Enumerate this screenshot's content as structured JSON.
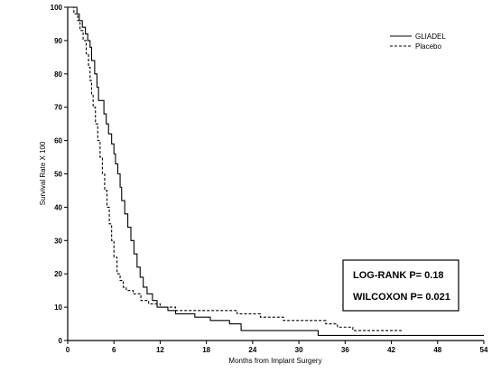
{
  "chart_data": {
    "type": "line",
    "title": "",
    "xlabel": "Months from Implant Surgery",
    "ylabel": "Survival Rate X 100",
    "xlim": [
      0,
      54
    ],
    "ylim": [
      0,
      100
    ],
    "xticks": [
      0,
      6,
      12,
      18,
      24,
      30,
      36,
      42,
      48,
      54
    ],
    "yticks": [
      0,
      10,
      20,
      30,
      40,
      50,
      60,
      70,
      80,
      90,
      100
    ],
    "grid": false,
    "legend_position": "top-right",
    "series": [
      {
        "name": "GLIADEL",
        "style": "solid",
        "points": [
          [
            0,
            100
          ],
          [
            1.2,
            100
          ],
          [
            1.2,
            98
          ],
          [
            1.5,
            98
          ],
          [
            1.5,
            96
          ],
          [
            1.9,
            96
          ],
          [
            1.9,
            94
          ],
          [
            2.3,
            94
          ],
          [
            2.3,
            92
          ],
          [
            2.6,
            92
          ],
          [
            2.6,
            90
          ],
          [
            2.9,
            90
          ],
          [
            2.9,
            88
          ],
          [
            3.1,
            88
          ],
          [
            3.1,
            84
          ],
          [
            3.5,
            84
          ],
          [
            3.5,
            80
          ],
          [
            3.8,
            80
          ],
          [
            3.8,
            76
          ],
          [
            4.0,
            76
          ],
          [
            4.0,
            72
          ],
          [
            4.7,
            72
          ],
          [
            4.7,
            68
          ],
          [
            5.0,
            68
          ],
          [
            5.0,
            65
          ],
          [
            5.3,
            65
          ],
          [
            5.3,
            62
          ],
          [
            5.7,
            62
          ],
          [
            5.7,
            59
          ],
          [
            6.0,
            59
          ],
          [
            6.0,
            56
          ],
          [
            6.2,
            56
          ],
          [
            6.2,
            53
          ],
          [
            6.5,
            53
          ],
          [
            6.5,
            50
          ],
          [
            6.8,
            50
          ],
          [
            6.8,
            46
          ],
          [
            7.0,
            46
          ],
          [
            7.0,
            42
          ],
          [
            7.4,
            42
          ],
          [
            7.4,
            38
          ],
          [
            7.8,
            38
          ],
          [
            7.8,
            34
          ],
          [
            8.2,
            34
          ],
          [
            8.2,
            30
          ],
          [
            8.6,
            30
          ],
          [
            8.6,
            26
          ],
          [
            9.0,
            26
          ],
          [
            9.0,
            22
          ],
          [
            9.4,
            22
          ],
          [
            9.4,
            19
          ],
          [
            9.8,
            19
          ],
          [
            9.8,
            16
          ],
          [
            10.3,
            16
          ],
          [
            10.3,
            14
          ],
          [
            11.0,
            14
          ],
          [
            11.0,
            12
          ],
          [
            11.6,
            12
          ],
          [
            11.6,
            10
          ],
          [
            13.0,
            10
          ],
          [
            13.0,
            9
          ],
          [
            14.0,
            9
          ],
          [
            14.0,
            8
          ],
          [
            16.5,
            8
          ],
          [
            16.5,
            7
          ],
          [
            18.5,
            7
          ],
          [
            18.5,
            6
          ],
          [
            21.0,
            6
          ],
          [
            21.0,
            5
          ],
          [
            22.5,
            5
          ],
          [
            22.5,
            3
          ],
          [
            32.5,
            3
          ],
          [
            32.5,
            1.5
          ],
          [
            54,
            1.5
          ]
        ]
      },
      {
        "name": "Placebo",
        "style": "dashed",
        "points": [
          [
            0,
            100
          ],
          [
            0.8,
            100
          ],
          [
            0.8,
            98
          ],
          [
            1.3,
            98
          ],
          [
            1.3,
            96
          ],
          [
            1.6,
            96
          ],
          [
            1.6,
            93
          ],
          [
            2.0,
            93
          ],
          [
            2.0,
            90
          ],
          [
            2.4,
            90
          ],
          [
            2.4,
            86
          ],
          [
            2.7,
            86
          ],
          [
            2.7,
            82
          ],
          [
            2.9,
            82
          ],
          [
            2.9,
            78
          ],
          [
            3.1,
            78
          ],
          [
            3.1,
            74
          ],
          [
            3.3,
            74
          ],
          [
            3.3,
            70
          ],
          [
            3.6,
            70
          ],
          [
            3.6,
            65
          ],
          [
            3.9,
            65
          ],
          [
            3.9,
            60
          ],
          [
            4.2,
            60
          ],
          [
            4.2,
            55
          ],
          [
            4.5,
            55
          ],
          [
            4.5,
            50
          ],
          [
            4.8,
            50
          ],
          [
            4.8,
            45
          ],
          [
            5.1,
            45
          ],
          [
            5.1,
            40
          ],
          [
            5.4,
            40
          ],
          [
            5.4,
            35
          ],
          [
            5.7,
            35
          ],
          [
            5.7,
            30
          ],
          [
            6.0,
            30
          ],
          [
            6.0,
            25
          ],
          [
            6.4,
            25
          ],
          [
            6.4,
            20
          ],
          [
            6.8,
            20
          ],
          [
            6.8,
            18
          ],
          [
            7.2,
            18
          ],
          [
            7.2,
            16
          ],
          [
            7.6,
            16
          ],
          [
            7.6,
            15
          ],
          [
            8.5,
            15
          ],
          [
            8.5,
            14
          ],
          [
            9.5,
            14
          ],
          [
            9.5,
            12
          ],
          [
            10.5,
            12
          ],
          [
            10.5,
            11
          ],
          [
            12.0,
            11
          ],
          [
            12.0,
            10
          ],
          [
            14.0,
            10
          ],
          [
            14.0,
            9
          ],
          [
            22.0,
            9
          ],
          [
            22.0,
            8
          ],
          [
            25.0,
            8
          ],
          [
            25.0,
            7
          ],
          [
            28.0,
            7
          ],
          [
            28.0,
            6
          ],
          [
            33.5,
            6
          ],
          [
            33.5,
            5
          ],
          [
            35.0,
            5
          ],
          [
            35.0,
            4
          ],
          [
            37.0,
            4
          ],
          [
            37.0,
            3
          ],
          [
            43.5,
            3
          ]
        ]
      }
    ],
    "annotations": [
      "LOG-RANK P= 0.18",
      "WILCOXON P= 0.021"
    ]
  }
}
